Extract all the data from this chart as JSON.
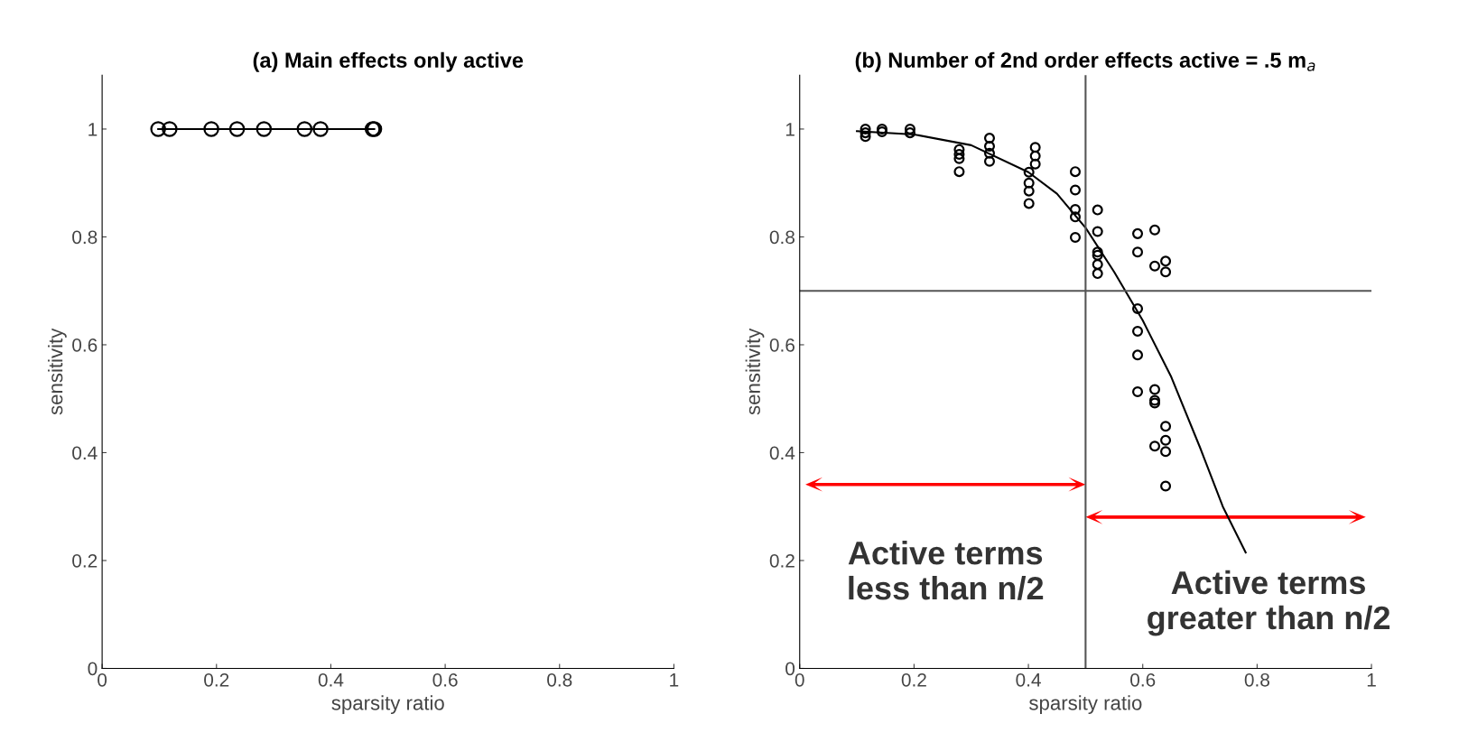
{
  "chart_data": [
    {
      "type": "line",
      "title": "(a) Main effects only active",
      "xlabel": "sparsity ratio",
      "ylabel": "sensitivity",
      "xlim": [
        0,
        1
      ],
      "ylim": [
        0,
        1.1
      ],
      "xticks": [
        0,
        0.2,
        0.4,
        0.6,
        0.8,
        1
      ],
      "yticks": [
        0,
        0.2,
        0.4,
        0.6,
        0.8,
        1
      ],
      "grid": false,
      "legend": false,
      "marker": "circle",
      "line_style": "solid",
      "series": [
        {
          "color": "#000000",
          "x": [
            0.098,
            0.118,
            0.191,
            0.236,
            0.283,
            0.354,
            0.382,
            0.473,
            0.476
          ],
          "values": [
            1,
            1,
            1,
            1,
            1,
            1,
            1,
            1,
            1
          ]
        }
      ]
    },
    {
      "type": "scatter",
      "title": "(b) Number of 2nd order effects active = .5 m$_{a}$",
      "xlabel": "sparsity ratio",
      "ylabel": "sensitivity",
      "xlim": [
        0,
        1
      ],
      "ylim": [
        0,
        1.1
      ],
      "xticks": [
        0,
        0.2,
        0.4,
        0.6,
        0.8,
        1
      ],
      "yticks": [
        0,
        0.2,
        0.4,
        0.6,
        0.8,
        1
      ],
      "grid": false,
      "legend": false,
      "marker": "circle",
      "series": [
        {
          "color": "#000000",
          "x": [
            0.115,
            0.115,
            0.115,
            0.144,
            0.144,
            0.193,
            0.193,
            0.279,
            0.279,
            0.279,
            0.279,
            0.332,
            0.332,
            0.332,
            0.332,
            0.412,
            0.412,
            0.412,
            0.401,
            0.401,
            0.401,
            0.401,
            0.482,
            0.482,
            0.482,
            0.482,
            0.482,
            0.521,
            0.521,
            0.521,
            0.521,
            0.521,
            0.521,
            0.591,
            0.591,
            0.591,
            0.591,
            0.591,
            0.591,
            0.621,
            0.621,
            0.621,
            0.621,
            0.621,
            0.621,
            0.64,
            0.64,
            0.64,
            0.64,
            0.64,
            0.64
          ],
          "values": [
            1.0,
            0.993,
            0.986,
            1.0,
            0.995,
            1.0,
            0.993,
            0.962,
            0.953,
            0.945,
            0.921,
            0.983,
            0.968,
            0.955,
            0.94,
            0.966,
            0.95,
            0.935,
            0.92,
            0.9,
            0.885,
            0.862,
            0.921,
            0.887,
            0.851,
            0.837,
            0.799,
            0.85,
            0.81,
            0.772,
            0.766,
            0.749,
            0.732,
            0.806,
            0.772,
            0.667,
            0.625,
            0.581,
            0.513,
            0.813,
            0.746,
            0.517,
            0.497,
            0.492,
            0.412,
            0.755,
            0.735,
            0.449,
            0.423,
            0.402,
            0.338
          ]
        },
        {
          "type": "line",
          "marker": "none",
          "color": "#000000",
          "x": [
            0.1,
            0.2,
            0.3,
            0.4,
            0.45,
            0.5,
            0.55,
            0.6,
            0.65,
            0.7,
            0.74,
            0.78
          ],
          "values": [
            0.996,
            0.99,
            0.97,
            0.92,
            0.88,
            0.817,
            0.735,
            0.645,
            0.54,
            0.41,
            0.3,
            0.215
          ]
        }
      ],
      "ref_lines": [
        {
          "axis": "x",
          "value": 0.5,
          "color": "#555555"
        },
        {
          "axis": "y",
          "value": 0.7,
          "color": "#555555"
        }
      ],
      "annotations": [
        "Active terms\nless than n/2",
        "Active terms\ngreater than n/2"
      ]
    }
  ]
}
